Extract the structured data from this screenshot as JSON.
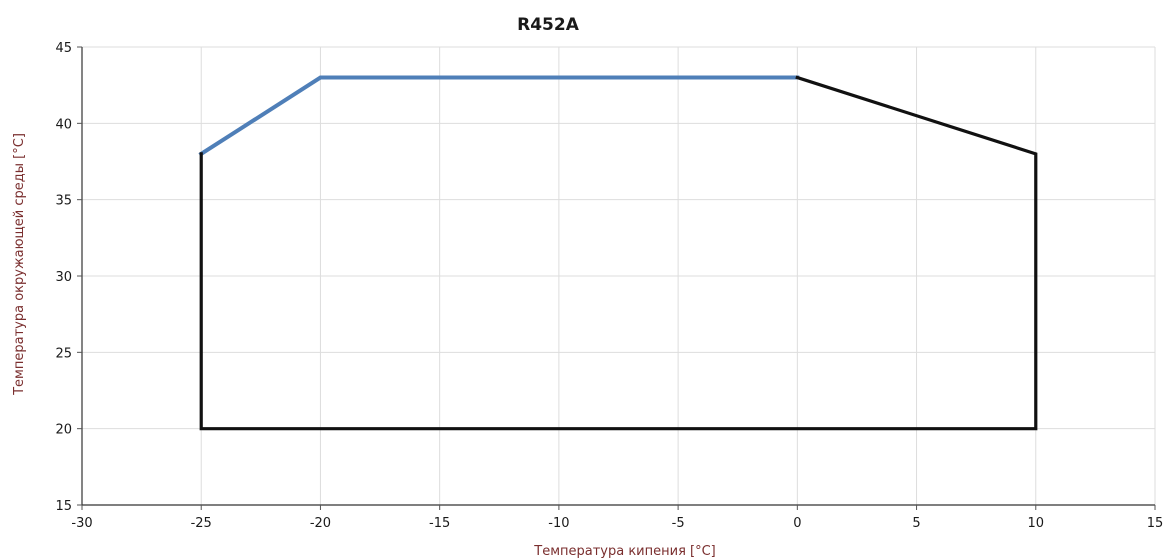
{
  "chart_data": {
    "type": "line",
    "title": "R452A",
    "xlabel": "Температура кипения [°C]",
    "ylabel": "Температура окружающей среды [°C]",
    "xlim": [
      -30,
      15
    ],
    "ylim": [
      15,
      45
    ],
    "x_ticks": [
      -30,
      -25,
      -20,
      -15,
      -10,
      -5,
      0,
      5,
      10,
      15
    ],
    "y_ticks": [
      15,
      20,
      25,
      30,
      35,
      40,
      45
    ],
    "x_tick_labels": [
      "-30",
      "-25",
      "-20",
      "-15",
      "-10",
      "-5",
      "0",
      "5",
      "10",
      "15"
    ],
    "y_tick_labels": [
      "15",
      "20",
      "25",
      "30",
      "35",
      "40",
      "45"
    ],
    "grid": true,
    "legend": "none",
    "series": [
      {
        "color": "#4f7fb8",
        "x": [
          -25,
          -20,
          0
        ],
        "y": [
          38,
          43,
          43
        ]
      },
      {
        "color": "#111111",
        "x": [
          0,
          10,
          10,
          -25,
          -25
        ],
        "y": [
          43,
          38,
          20,
          20,
          38
        ]
      }
    ]
  }
}
